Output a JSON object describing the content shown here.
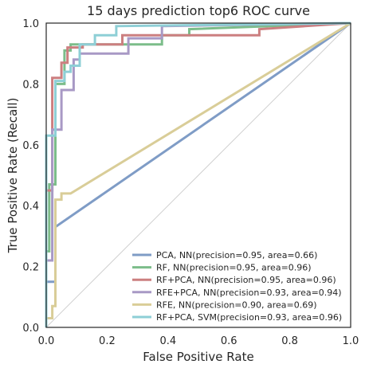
{
  "chart_data": {
    "type": "line",
    "title": "15 days prediction top6 ROC curve",
    "xlabel": "False Positive Rate",
    "ylabel": "True Positive Rate (Recall)",
    "xlim": [
      0.0,
      1.0
    ],
    "ylim": [
      0.0,
      1.0
    ],
    "x_ticks": [
      "0.0",
      "0.2",
      "0.4",
      "0.6",
      "0.8",
      "1.0"
    ],
    "y_ticks": [
      "0.0",
      "0.2",
      "0.4",
      "0.6",
      "0.8",
      "1.0"
    ],
    "grid": false,
    "legend_position": "lower-right",
    "baseline": {
      "x": [
        0,
        1
      ],
      "y": [
        0,
        1
      ],
      "color": "#d0d0d0"
    },
    "series": [
      {
        "name": "PCA, NN(precision=0.95, area=0.66)",
        "color": "#7f9cc6",
        "x": [
          0.0,
          0.0,
          0.03,
          0.03,
          1.0
        ],
        "y": [
          0.0,
          0.15,
          0.15,
          0.33,
          1.0
        ]
      },
      {
        "name": "RF, NN(precision=0.95, area=0.96)",
        "color": "#7cbd8a",
        "x": [
          0.0,
          0.0,
          0.01,
          0.01,
          0.03,
          0.03,
          0.06,
          0.06,
          0.08,
          0.08,
          0.38,
          0.38,
          0.47,
          0.47,
          1.0
        ],
        "y": [
          0.0,
          0.25,
          0.25,
          0.47,
          0.47,
          0.8,
          0.8,
          0.91,
          0.91,
          0.93,
          0.93,
          0.96,
          0.96,
          0.98,
          1.0
        ]
      },
      {
        "name": "RF+PCA, NN(precision=0.95, area=0.96)",
        "color": "#cc7f80",
        "x": [
          0.0,
          0.0,
          0.02,
          0.02,
          0.05,
          0.05,
          0.07,
          0.07,
          0.12,
          0.12,
          0.25,
          0.25,
          0.7,
          0.7,
          1.0
        ],
        "y": [
          0.0,
          0.45,
          0.45,
          0.82,
          0.82,
          0.87,
          0.87,
          0.92,
          0.92,
          0.93,
          0.93,
          0.96,
          0.96,
          0.98,
          1.0
        ]
      },
      {
        "name": "RFE+PCA, NN(precision=0.93, area=0.94)",
        "color": "#a899c5",
        "x": [
          0.0,
          0.0,
          0.02,
          0.02,
          0.05,
          0.05,
          0.09,
          0.09,
          0.11,
          0.11,
          0.27,
          0.27,
          0.38,
          0.38,
          1.0
        ],
        "y": [
          0.0,
          0.22,
          0.22,
          0.65,
          0.65,
          0.78,
          0.78,
          0.88,
          0.88,
          0.9,
          0.9,
          0.95,
          0.95,
          0.99,
          1.0
        ]
      },
      {
        "name": "RFE, NN(precision=0.90, area=0.69)",
        "color": "#d9cd98",
        "x": [
          0.0,
          0.0,
          0.02,
          0.02,
          0.03,
          0.03,
          0.05,
          0.05,
          0.08,
          1.0
        ],
        "y": [
          0.0,
          0.03,
          0.03,
          0.07,
          0.07,
          0.42,
          0.42,
          0.44,
          0.44,
          1.0
        ]
      },
      {
        "name": "RF+PCA, SVM(precision=0.93, area=0.96)",
        "color": "#8ecfd6",
        "x": [
          0.0,
          0.0,
          0.03,
          0.03,
          0.06,
          0.06,
          0.08,
          0.08,
          0.11,
          0.11,
          0.16,
          0.16,
          0.23,
          0.23,
          1.0
        ],
        "y": [
          0.0,
          0.63,
          0.63,
          0.81,
          0.81,
          0.84,
          0.84,
          0.86,
          0.86,
          0.93,
          0.93,
          0.96,
          0.96,
          0.99,
          1.0
        ]
      }
    ]
  }
}
